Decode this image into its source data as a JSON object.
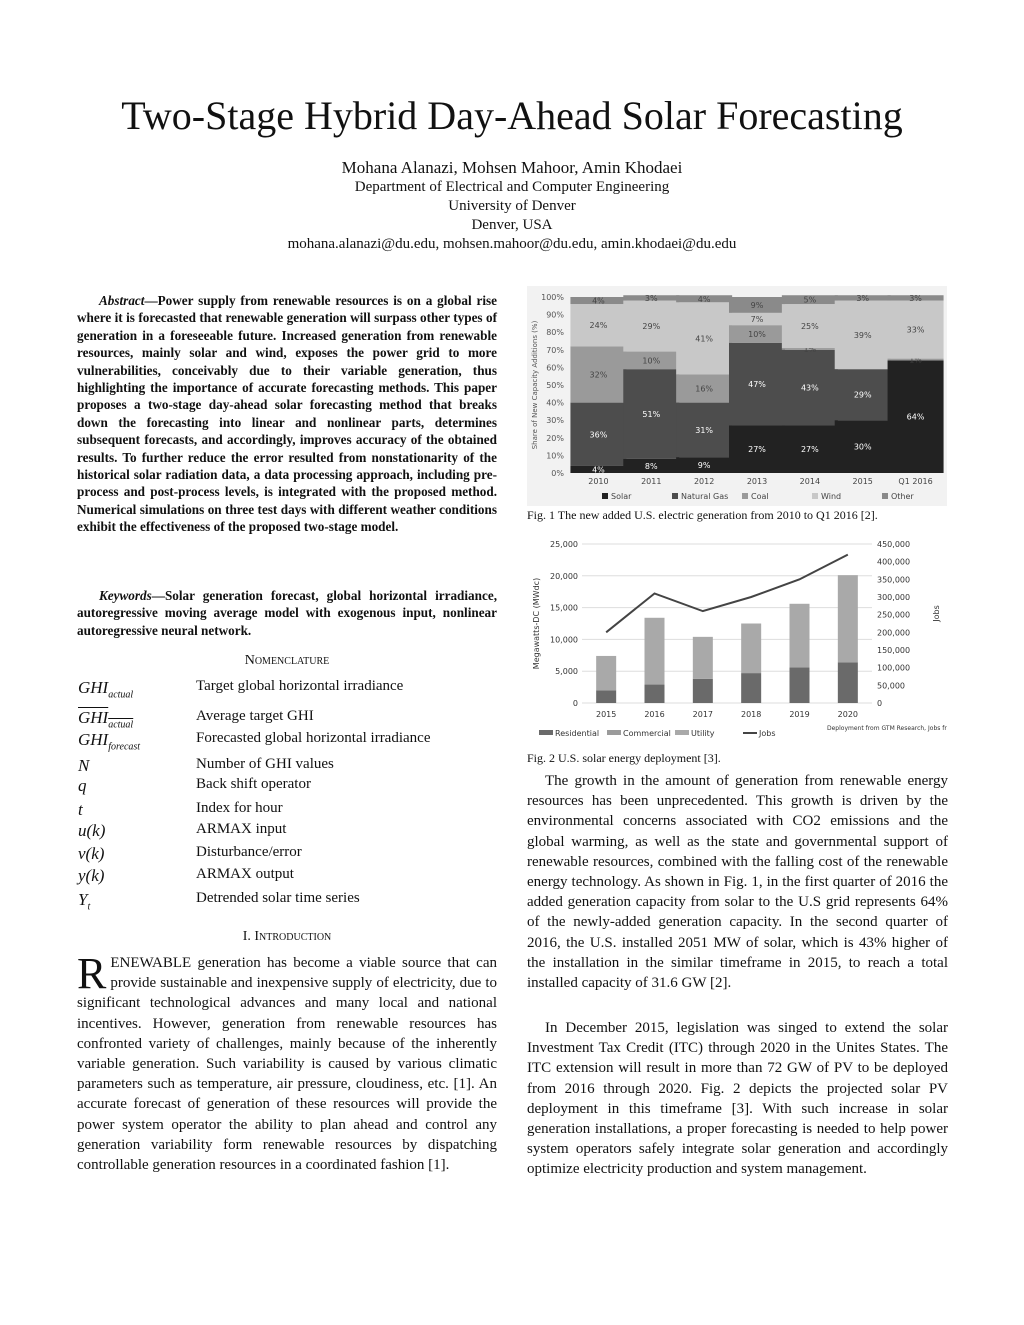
{
  "title": "Two-Stage Hybrid Day-Ahead Solar Forecasting",
  "authors": "Mohana Alanazi, Mohsen Mahoor, Amin Khodaei",
  "affiliation": [
    "Department of Electrical and Computer Engineering",
    "University of Denver",
    "Denver, USA"
  ],
  "emails": "mohana.alanazi@du.edu, mohsen.mahoor@du.edu, amin.khodaei@du.edu",
  "abstract": {
    "label": "Abstract",
    "text": "Power supply from renewable resources is on a global rise where it is forecasted that renewable generation will surpass other types of generation in a foreseeable future. Increased generation from renewable resources, mainly solar and wind, exposes the power grid to more vulnerabilities, conceivably due to their variable generation, thus highlighting the importance of accurate forecasting methods. This paper proposes a two-stage day-ahead solar forecasting method that breaks down the forecasting into linear and nonlinear parts, determines subsequent forecasts, and accordingly, improves accuracy of the obtained results. To further reduce the error resulted from nonstationarity of the historical solar radiation data, a data processing approach, including pre-process and post-process levels, is integrated with the proposed method. Numerical simulations on three test days with different weather conditions exhibit the effectiveness of the proposed two-stage model."
  },
  "keywords": {
    "label": "Keywords",
    "text": "Solar generation forecast, global horizontal irradiance, autoregressive moving average model with exogenous input, nonlinear autoregressive neural network."
  },
  "nomenclature": {
    "heading": "Nomenclature",
    "items": [
      {
        "sym": "GHI",
        "sub": "actual",
        "def": "Target global horizontal irradiance"
      },
      {
        "sym": "GHI",
        "sub": "actual",
        "def": "Average target GHI",
        "overline": true
      },
      {
        "sym": "GHI",
        "sub": "forecast",
        "def": "Forecasted global horizontal irradiance"
      },
      {
        "sym": "N",
        "sub": "",
        "def": "Number of GHI values"
      },
      {
        "sym": "q",
        "sub": "",
        "def": "Back shift operator"
      },
      {
        "sym": "t",
        "sub": "",
        "def": "Index for hour"
      },
      {
        "sym": "u(k)",
        "sub": "",
        "def": "ARMAX input"
      },
      {
        "sym": "v(k)",
        "sub": "",
        "def": "Disturbance/error"
      },
      {
        "sym": "y(k)",
        "sub": "",
        "def": "ARMAX output"
      },
      {
        "sym": "Y",
        "sub": "t",
        "def": "Detrended solar time series"
      }
    ]
  },
  "intro": {
    "heading": "I.   Introduction",
    "dropcap": "R",
    "text": "ENEWABLE generation has become a viable source that can provide sustainable and inexpensive supply of electricity, due to significant technological advances and many local and national incentives. However, generation from renewable resources has confronted variety of challenges, mainly because of the inherently variable generation. Such variability is caused by various climatic parameters such as temperature, air pressure, cloudiness, etc. [1]. An accurate forecast of generation of these resources will provide the power system operator the ability to plan ahead and control any generation variability form renewable resources by dispatching controllable generation resources in a coordinated fashion [1]."
  },
  "fig1_caption": "Fig. 1 The new added U.S. electric generation from 2010 to Q1 2016 [2].",
  "fig2_caption": "Fig. 2 U.S. solar energy deployment [3].",
  "right_paragraphs": [
    "The growth in the amount of generation from renewable energy resources has been unprecedented. This growth is driven by the environmental concerns associated with CO2 emissions and the global warming, as well as the state and governmental support of renewable resources, combined with the falling cost of the renewable energy technology. As shown in Fig. 1, in the first quarter of 2016 the added generation capacity from solar to the U.S grid represents 64% of the newly-added generation capacity. In the second quarter of 2016, the U.S. installed 2051 MW of solar, which is 43% higher of the installation in the similar timeframe in 2015, to reach a total installed capacity of 31.6 GW [2].",
    "In December 2015, legislation was singed to extend the solar Investment Tax Credit (ITC) through 2020 in the Unites States. The ITC extension will result in more than 72 GW of PV to be deployed from 2016 through 2020. Fig. 2 depicts the projected solar PV deployment in this timeframe [3]. With such increase in solar generation installations, a proper forecasting is needed to help power system operators safely integrate solar generation and accordingly optimize electricity production and system management."
  ],
  "chart_data": [
    {
      "type": "bar",
      "stacked": true,
      "ylabel": "Share of New Capacity Additions (%)",
      "ylim": [
        0,
        100
      ],
      "yticks": [
        "0%",
        "10%",
        "20%",
        "30%",
        "40%",
        "50%",
        "60%",
        "70%",
        "80%",
        "90%",
        "100%"
      ],
      "legend": "bottom",
      "categories": [
        "2010",
        "2011",
        "2012",
        "2013",
        "2014",
        "2015",
        "Q1  2016"
      ],
      "series": [
        {
          "name": "Solar",
          "color": "#222222",
          "values": [
            4,
            8,
            9,
            27,
            27,
            30,
            64
          ]
        },
        {
          "name": "Natural Gas",
          "color": "#4d4d4d",
          "values": [
            36,
            51,
            31,
            47,
            43,
            29,
            0
          ]
        },
        {
          "name": "Coal",
          "color": "#9a9a9a",
          "values": [
            32,
            10,
            16,
            10,
            1,
            0,
            1
          ]
        },
        {
          "name": "Wind",
          "color": "#c8c8c8",
          "values": [
            24,
            29,
            41,
            7,
            25,
            39,
            33
          ]
        },
        {
          "name": "Other",
          "color": "#8a8a8a",
          "values": [
            4,
            3,
            4,
            9,
            5,
            3,
            3
          ]
        }
      ]
    },
    {
      "type": "bar+line",
      "stacked": true,
      "ylabel": "Megawatts-DC (MWdc)",
      "y2label": "Jobs",
      "ylim": [
        0,
        25000
      ],
      "y2lim": [
        0,
        450000
      ],
      "yticks": [
        "0",
        "5,000",
        "10,000",
        "15,000",
        "20,000",
        "25,000"
      ],
      "y2ticks": [
        "0",
        "50,000",
        "100,000",
        "150,000",
        "200,000",
        "250,000",
        "300,000",
        "350,000",
        "400,000",
        "450,000"
      ],
      "categories": [
        "2015",
        "2016",
        "2017",
        "2018",
        "2019",
        "2020"
      ],
      "series": [
        {
          "name": "Residential",
          "color": "#6a6a6a",
          "values": [
            2000,
            2900,
            3800,
            4700,
            5600,
            6400
          ]
        },
        {
          "name": "Commercial",
          "color": "#9b9b9b",
          "values": [
            null,
            null,
            null,
            null,
            null,
            null
          ]
        },
        {
          "name": "Utility",
          "color": "#a9a9a9",
          "values": [
            5400,
            10500,
            6600,
            7800,
            10000,
            13700
          ]
        },
        {
          "name": "Jobs",
          "type": "line",
          "axis": "right",
          "color": "#444444",
          "values": [
            200000,
            310000,
            260000,
            300000,
            350000,
            420000
          ]
        }
      ],
      "note": "Deployment from GTM Research, Jobs from SEIA",
      "legend": "bottom"
    }
  ]
}
